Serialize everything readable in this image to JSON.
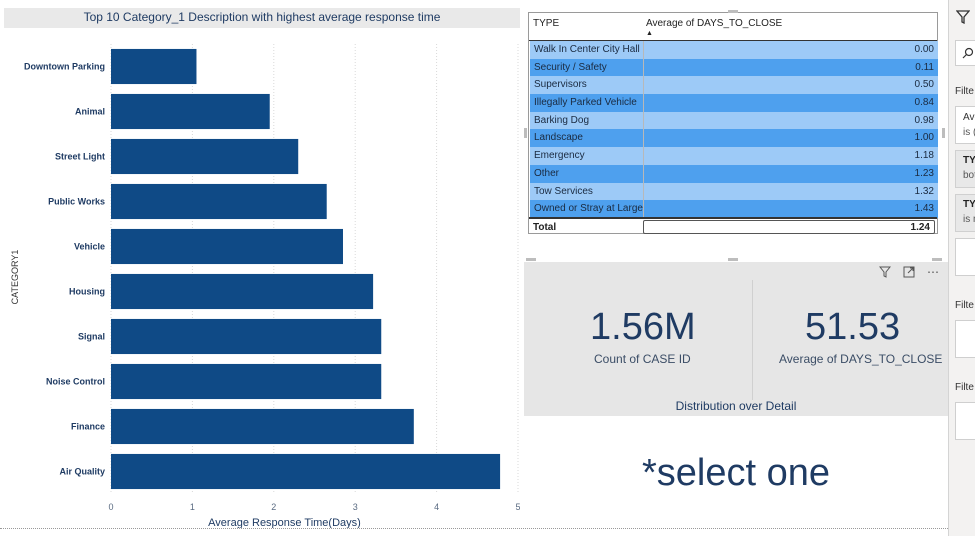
{
  "chart": {
    "title": "Top 10 Category_1 Description with highest average response time"
  },
  "chart_data": {
    "type": "bar",
    "orientation": "horizontal",
    "categories": [
      "Downtown Parking",
      "Animal",
      "Street Light",
      "Public Works",
      "Vehicle",
      "Housing",
      "Signal",
      "Noise Control",
      "Finance",
      "Air Quality"
    ],
    "values": [
      1.05,
      1.95,
      2.3,
      2.65,
      2.85,
      3.22,
      3.32,
      3.32,
      3.72,
      4.78
    ],
    "title": "Top 10 Category_1 Description with highest average response time",
    "xlabel": "Average Response Time(Days)",
    "ylabel": "CATEGORY1",
    "xlim": [
      0,
      5
    ],
    "xticks": [
      "0",
      "1",
      "2",
      "3",
      "4",
      "5"
    ],
    "bar_color": "#0f4a86",
    "grid": true
  },
  "table": {
    "headers": [
      "TYPE",
      "Average of DAYS_TO_CLOSE"
    ],
    "rows": [
      {
        "type": "Walk In Center City Hall",
        "value": "0.00"
      },
      {
        "type": "Security / Safety",
        "value": "0.11"
      },
      {
        "type": "Supervisors",
        "value": "0.50"
      },
      {
        "type": "Illegally Parked Vehicle",
        "value": "0.84"
      },
      {
        "type": "Barking Dog",
        "value": "0.98"
      },
      {
        "type": "Landscape",
        "value": "1.00"
      },
      {
        "type": "Emergency",
        "value": "1.18"
      },
      {
        "type": "Other",
        "value": "1.23"
      },
      {
        "type": "Tow Services",
        "value": "1.32"
      },
      {
        "type": "Owned or Stray at Large",
        "value": "1.43"
      }
    ],
    "total_label": "Total",
    "total_value": "1.24",
    "row_colors": [
      "#9dcaf7",
      "#4ea0ee"
    ]
  },
  "cards": {
    "count_value": "1.56M",
    "count_label": "Count of CASE ID",
    "avg_value": "51.53",
    "avg_label": "Average of DAYS_TO_CLOSE",
    "footer": "Distribution over Detail"
  },
  "select_text": "*select one",
  "toolbar_icons": [
    "filter-icon",
    "focus-mode-icon",
    "more-options-icon"
  ],
  "filter_pane": {
    "filter_label_1": "Filte",
    "box_text_1": "Ave",
    "box_text_2": "is (",
    "card_1_bold": "TY",
    "card_1_sub": "bot",
    "card_2_bold": "TY",
    "card_2_sub": "is n",
    "filter_label_2": "Filte",
    "filter_label_3": "Filte"
  }
}
